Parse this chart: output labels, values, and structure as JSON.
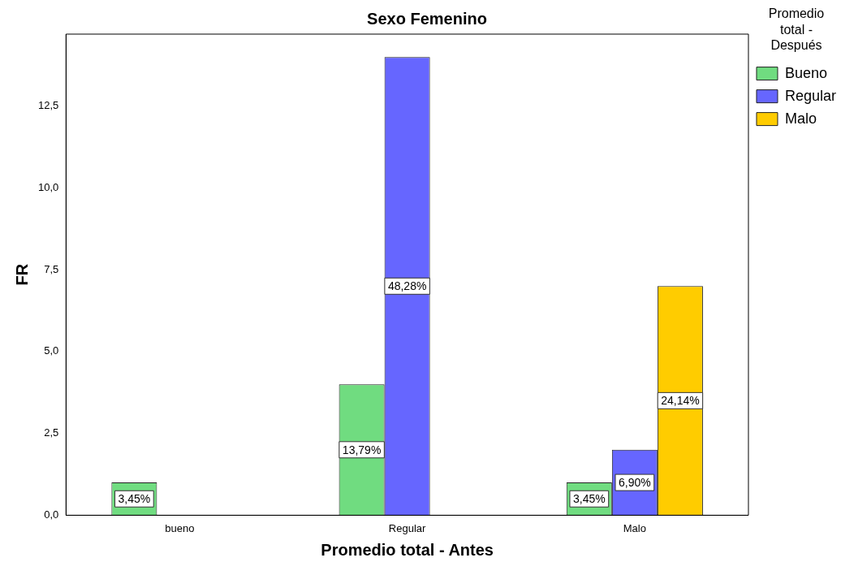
{
  "chart_data": {
    "type": "bar",
    "title": "Sexo Femenino",
    "xlabel": "Promedio total - Antes",
    "ylabel": "FR",
    "legend_title": "Promedio total - Después",
    "categories": [
      "bueno",
      "Regular",
      "Malo"
    ],
    "series": [
      {
        "name": "Bueno",
        "color": "#70dc80",
        "values": [
          1,
          4,
          1
        ]
      },
      {
        "name": "Regular",
        "color": "#6666ff",
        "values": [
          null,
          14,
          2
        ]
      },
      {
        "name": "Malo",
        "color": "#ffcc00",
        "values": [
          null,
          null,
          7
        ]
      }
    ],
    "annotations": [
      "3,45%",
      "13,79%",
      "48,28%",
      "3,45%",
      "6,90%",
      "24,14%"
    ],
    "ylim": [
      0,
      14.7
    ],
    "yticks": [
      {
        "value": 0,
        "label": "0,0"
      },
      {
        "value": 2.5,
        "label": "2,5"
      },
      {
        "value": 5,
        "label": "5,0"
      },
      {
        "value": 7.5,
        "label": "7,5"
      },
      {
        "value": 10,
        "label": "10,0"
      },
      {
        "value": 12.5,
        "label": "12,5"
      }
    ],
    "grid": false,
    "legend": "top right"
  }
}
